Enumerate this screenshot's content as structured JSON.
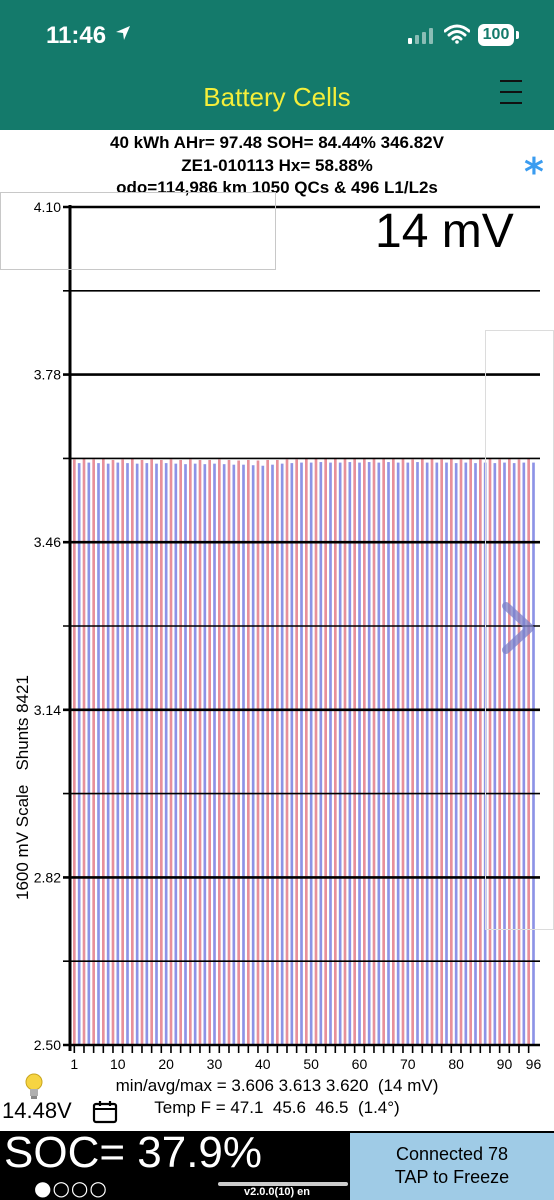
{
  "status_bar": {
    "time": "11:46",
    "battery": "100"
  },
  "app": {
    "title": "Battery Cells",
    "menu_icon": "hamburger-icon"
  },
  "info": {
    "line1": "40 kWh  AHr= 97.48  SOH= 84.44%   346.82V",
    "line2": "ZE1-010113   Hx= 58.88%",
    "line3": "odo=114,986 km 1050 QCs & 496 L1/L2s"
  },
  "star": "*",
  "chart_data": {
    "type": "bar",
    "mv_spread_label": "14 mV",
    "ylabel": "1600 mV Scale   Shunts 8421",
    "ylim": [
      2.5,
      4.1
    ],
    "yticks": [
      "4.10",
      "3.78",
      "3.46",
      "3.14",
      "2.82",
      "2.50"
    ],
    "xticks": [
      "1",
      "10",
      "20",
      "30",
      "40",
      "50",
      "60",
      "70",
      "80",
      "90",
      "96"
    ],
    "cell_count": 96,
    "min": 3.606,
    "avg": 3.613,
    "max": 3.62,
    "values": [
      3.618,
      3.611,
      3.619,
      3.612,
      3.618,
      3.611,
      3.619,
      3.61,
      3.617,
      3.612,
      3.618,
      3.611,
      3.619,
      3.61,
      3.617,
      3.611,
      3.618,
      3.61,
      3.617,
      3.611,
      3.618,
      3.61,
      3.617,
      3.609,
      3.618,
      3.61,
      3.617,
      3.609,
      3.617,
      3.61,
      3.618,
      3.609,
      3.617,
      3.608,
      3.616,
      3.608,
      3.617,
      3.607,
      3.616,
      3.606,
      3.617,
      3.608,
      3.617,
      3.61,
      3.618,
      3.611,
      3.618,
      3.612,
      3.619,
      3.612,
      3.619,
      3.613,
      3.619,
      3.612,
      3.62,
      3.612,
      3.619,
      3.613,
      3.619,
      3.612,
      3.619,
      3.613,
      3.62,
      3.612,
      3.619,
      3.613,
      3.619,
      3.612,
      3.619,
      3.612,
      3.618,
      3.613,
      3.619,
      3.612,
      3.619,
      3.612,
      3.618,
      3.612,
      3.619,
      3.611,
      3.618,
      3.612,
      3.619,
      3.611,
      3.618,
      3.612,
      3.619,
      3.611,
      3.618,
      3.612,
      3.619,
      3.611,
      3.618,
      3.612,
      3.619,
      3.612
    ],
    "colors": {
      "odd": "#e8909a",
      "even": "#8d93e6",
      "axis": "#000000"
    }
  },
  "stats": {
    "minavgmax": "min/avg/max = 3.606 3.613 3.620  (14 mV)",
    "temp": "Temp F = 47.1  45.6  46.5  (1.4°)"
  },
  "footer": {
    "voltage": "14.48V",
    "soc": "SOC= 37.9%",
    "dots": "●○○○",
    "version": "v2.0.0(10) en",
    "conn_line1": "Connected 78",
    "conn_line2": "TAP to Freeze"
  }
}
